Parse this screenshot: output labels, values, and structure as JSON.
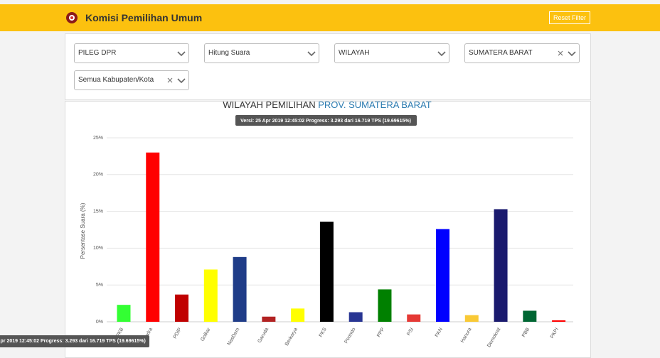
{
  "header": {
    "title": "Komisi Pemilihan Umum",
    "reset_button": "Reset Filter"
  },
  "filters": [
    "PILEG DPR",
    "Hitung Suara",
    "WILAYAH",
    "SUMATERA BARAT",
    "Semua Kabupaten/Kota"
  ],
  "chart_data": {
    "type": "bar",
    "title": "WILAYAH PEMILIHAN",
    "title_highlight": "PROV. SUMATERA BARAT",
    "subtitle": "Versi: 25 Apr 2019 12:45:02 Progress: 3.293 dari 16.719 TPS (19.69615%)",
    "y_label": "Persentase Suara (%)",
    "categories": [
      "PKB",
      "Gerindra",
      "PDIP",
      "Golkar",
      "NasDem",
      "Garuda",
      "Berkarya",
      "PKS",
      "Perindo",
      "PPP",
      "PSI",
      "PAN",
      "Hanura",
      "Demokrat",
      "PBB",
      "PKPI"
    ],
    "values": [
      2.3,
      23.0,
      3.7,
      7.1,
      8.8,
      0.7,
      1.8,
      13.6,
      1.3,
      4.4,
      1.0,
      12.6,
      0.9,
      15.3,
      1.5,
      0.2
    ],
    "colors": [
      "#33ff33",
      "#ff0000",
      "#c00000",
      "#ffff00",
      "#1f3c88",
      "#b22222",
      "#ffff00",
      "#000000",
      "#283593",
      "#008000",
      "#e53935",
      "#0000ff",
      "#f9c935",
      "#1a1a6e",
      "#006633",
      "#ff0000"
    ],
    "ylim": [
      0,
      25
    ],
    "yticks": [
      {
        "value": 0,
        "label": "0%"
      },
      {
        "value": 5,
        "label": "5%"
      },
      {
        "value": 10,
        "label": "10%"
      },
      {
        "value": 15,
        "label": "15%"
      },
      {
        "value": 20,
        "label": "20%"
      },
      {
        "value": 25,
        "label": "25%"
      }
    ],
    "grid": true
  }
}
